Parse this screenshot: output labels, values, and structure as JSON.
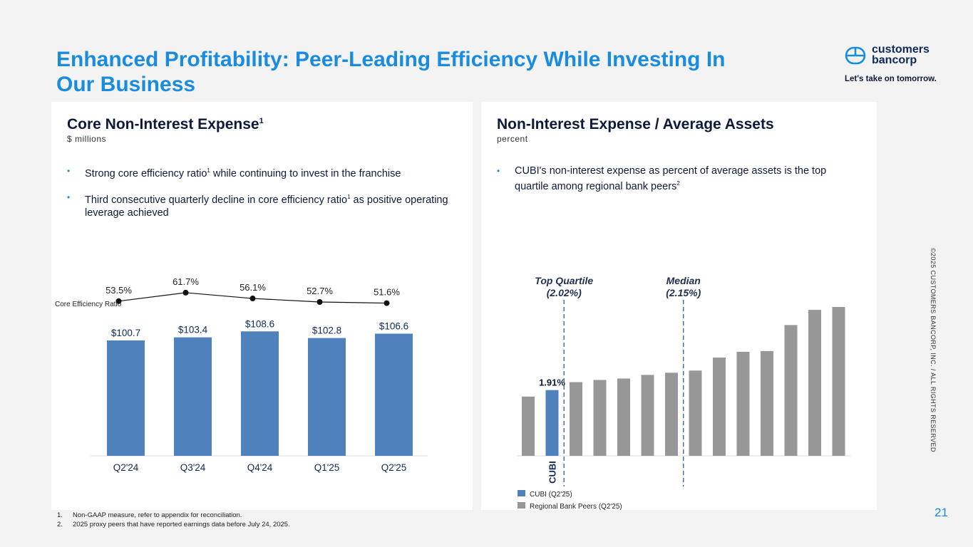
{
  "header": {
    "title": "Enhanced Profitability: Peer-Leading Efficiency While Investing In Our Business"
  },
  "logo": {
    "name": "customers bancorp",
    "tagline": "Let's take on tomorrow."
  },
  "left_panel": {
    "title": "Core Non-Interest Expense",
    "title_sup": "1",
    "subtitle": "$ millions",
    "bullets": [
      {
        "pre": "Strong core efficiency ratio",
        "sup": "1",
        "post": " while continuing to invest in the franchise"
      },
      {
        "pre": "Third consecutive quarterly decline in core efficiency ratio",
        "sup": "1",
        "post": " as positive operating leverage achieved"
      }
    ]
  },
  "right_panel": {
    "title": "Non-Interest Expense / Average Assets",
    "subtitle": "percent",
    "bullet_text": "CUBI's non-interest expense as percent of average assets is the top quartile among regional bank peers",
    "bullet_sup": "2"
  },
  "chart_data": [
    {
      "type": "bar",
      "title": "Core Non-Interest Expense",
      "ylabel": "$ millions",
      "categories": [
        "Q2'24",
        "Q3'24",
        "Q4'24",
        "Q1'25",
        "Q2'25"
      ],
      "values": [
        100.7,
        103.4,
        108.6,
        102.8,
        106.6
      ],
      "value_labels": [
        "$100.7",
        "$103.4",
        "$108.6",
        "$102.8",
        "$106.6"
      ],
      "ylim": [
        0,
        110
      ],
      "bar_color": "#4f81bd",
      "overlay_line": {
        "name": "Core Efficiency Ratio",
        "values": [
          53.5,
          61.7,
          56.1,
          52.7,
          51.6
        ],
        "labels": [
          "53.5%",
          "61.7%",
          "56.1%",
          "52.7%",
          "51.6%"
        ]
      }
    },
    {
      "type": "bar",
      "title": "Non-Interest Expense / Average Assets",
      "ylabel": "percent",
      "values": [
        1.82,
        1.91,
        2.02,
        2.05,
        2.07,
        2.12,
        2.15,
        2.18,
        2.36,
        2.44,
        2.45,
        2.81,
        3.02,
        3.06
      ],
      "highlight_index": 1,
      "highlight_label": "1.91%",
      "highlight_category": "CUBI",
      "ylim": [
        1.0,
        3.2
      ],
      "colors": {
        "cubi": "#4f81bd",
        "peers": "#979797"
      },
      "legend": [
        "CUBI (Q2'25)",
        "Regional Bank Peers (Q2'25)"
      ],
      "annotations": [
        {
          "label": "Top Quartile",
          "value": "(2.02%)",
          "after_bar": 1
        },
        {
          "label": "Median",
          "value": "(2.15%)",
          "after_bar": 6
        }
      ]
    }
  ],
  "footnotes": [
    {
      "num": "1.",
      "text": "Non-GAAP measure, refer to appendix for reconciliation."
    },
    {
      "num": "2.",
      "text": "2025 proxy peers that have reported earnings data before July 24, 2025."
    }
  ],
  "copyright": "©2025 CUSTOMERS BANCORP, INC. / ALL RIGHTS RESERVED",
  "page_number": "21"
}
